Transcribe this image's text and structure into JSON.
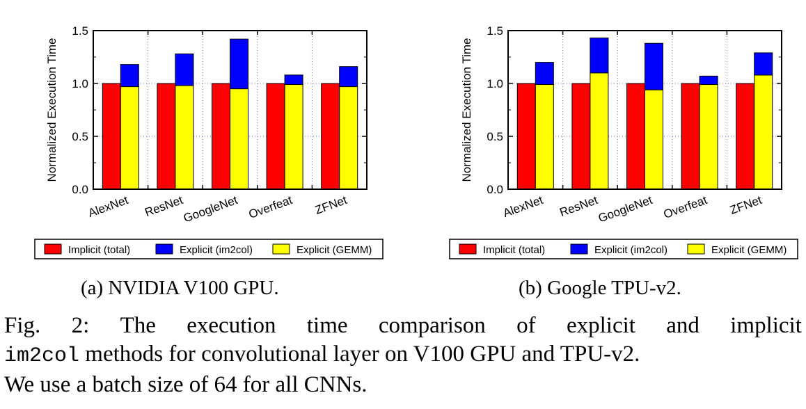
{
  "chart_data": [
    {
      "type": "bar",
      "ylabel": "Normalized Execution Time",
      "xlabel": "",
      "ylim": [
        0,
        1.5
      ],
      "yticks": [
        "0.0",
        "0.5",
        "1.0",
        "1.5"
      ],
      "grid": true,
      "stacked_series": [
        "Explicit (GEMM)",
        "Explicit (im2col)"
      ],
      "categories": [
        "AlexNet",
        "ResNet",
        "GoogleNet",
        "Overfeat",
        "ZFNet"
      ],
      "series": [
        {
          "name": "Implicit (total)",
          "color": "#ff0000",
          "values": [
            1.0,
            1.0,
            1.0,
            1.0,
            1.0
          ]
        },
        {
          "name": "Explicit (im2col)",
          "color": "#0000ff",
          "values": [
            0.21,
            0.3,
            0.47,
            0.09,
            0.19
          ]
        },
        {
          "name": "Explicit (GEMM)",
          "color": "#ffff00",
          "values": [
            0.97,
            0.98,
            0.95,
            0.99,
            0.97
          ]
        }
      ],
      "legend": {
        "position": "bottom",
        "items": [
          "Implicit (total)",
          "Explicit (im2col)",
          "Explicit (GEMM)"
        ]
      }
    },
    {
      "type": "bar",
      "ylabel": "Normalized Execution Time",
      "xlabel": "",
      "ylim": [
        0,
        1.5
      ],
      "yticks": [
        "0.0",
        "0.5",
        "1.0",
        "1.5"
      ],
      "grid": true,
      "stacked_series": [
        "Explicit (GEMM)",
        "Explicit (im2col)"
      ],
      "categories": [
        "AlexNet",
        "ResNet",
        "GoogleNet",
        "Overfeat",
        "ZFNet"
      ],
      "series": [
        {
          "name": "Implicit (total)",
          "color": "#ff0000",
          "values": [
            1.0,
            1.0,
            1.0,
            1.0,
            1.0
          ]
        },
        {
          "name": "Explicit (im2col)",
          "color": "#0000ff",
          "values": [
            0.21,
            0.33,
            0.44,
            0.08,
            0.21
          ]
        },
        {
          "name": "Explicit (GEMM)",
          "color": "#ffff00",
          "values": [
            0.99,
            1.1,
            0.94,
            0.99,
            1.08
          ]
        }
      ],
      "legend": {
        "position": "bottom",
        "items": [
          "Implicit (total)",
          "Explicit (im2col)",
          "Explicit (GEMM)"
        ]
      }
    }
  ],
  "subcaptions": {
    "a": "(a) NVIDIA V100 GPU.",
    "b": "(b) Google TPU-v2."
  },
  "caption": {
    "line1_words": [
      "Fig.",
      "2:",
      "The",
      "execution",
      "time",
      "comparison",
      "of",
      "explicit",
      "and",
      "implicit"
    ],
    "line2_code": "im2col",
    "line2_rest": " methods for convolutional layer on V100 GPU and TPU-v2.",
    "line3": "We use a batch size of 64 for all CNNs."
  }
}
